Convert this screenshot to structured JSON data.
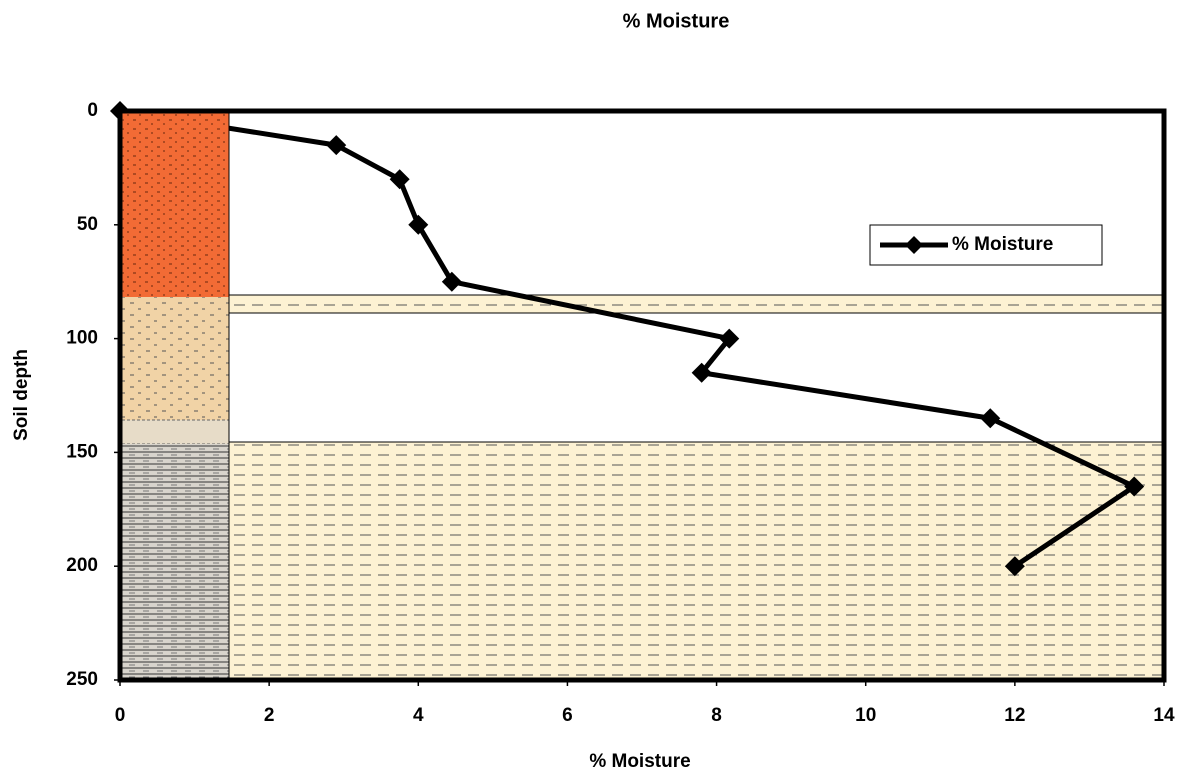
{
  "chart_data": {
    "type": "line",
    "title": "% Moisture",
    "x_label": "% Moisture",
    "y_label": "Soil depth",
    "x": [
      0,
      2.9,
      3.75,
      4.0,
      4.45,
      8.17,
      7.8,
      11.67,
      13.6,
      12.0
    ],
    "series": [
      {
        "name": "% Moisture",
        "color": "#000000",
        "values": [
          0,
          15,
          30,
          50,
          75,
          100,
          115,
          135,
          165,
          200
        ]
      }
    ],
    "xlim": [
      0,
      14
    ],
    "xticks": [
      0,
      2,
      4,
      6,
      8,
      10,
      12,
      14
    ],
    "ylim": [
      250,
      0
    ],
    "yticks": [
      0,
      50,
      100,
      150,
      200,
      250
    ],
    "legend": "upper right"
  }
}
